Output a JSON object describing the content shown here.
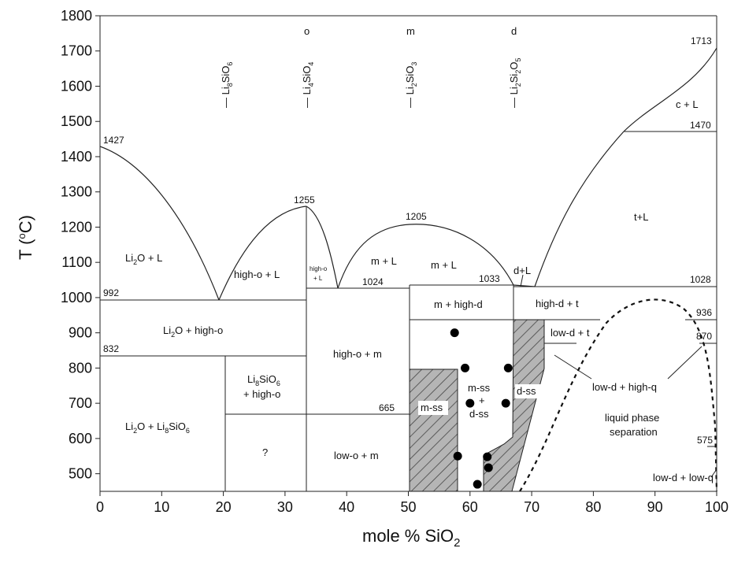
{
  "chart_data": {
    "type": "phase-diagram",
    "xlabel": "mole % SiO",
    "xlabel_sub": "2",
    "ylabel": "T (",
    "ylabel_deg": "o",
    "ylabel_end": "C)",
    "xlim": [
      0,
      100
    ],
    "ylim": [
      450,
      1800
    ],
    "x_ticks": [
      "0",
      "10",
      "20",
      "30",
      "40",
      "50",
      "60",
      "70",
      "80",
      "90",
      "100"
    ],
    "y_ticks": [
      "500",
      "600",
      "700",
      "800",
      "900",
      "1000",
      "1100",
      "1200",
      "1300",
      "1400",
      "1500",
      "1600",
      "1700",
      "1800"
    ],
    "compounds": [
      {
        "x": 20,
        "main": "Li",
        "s1": "8",
        "mid": "SiO",
        "s2": "6",
        "letter": ""
      },
      {
        "x": 33.3,
        "main": "Li",
        "s1": "4",
        "mid": "SiO",
        "s2": "4",
        "letter": "o"
      },
      {
        "x": 50,
        "main": "Li",
        "s1": "2",
        "mid": "SiO",
        "s2": "3",
        "letter": "m"
      },
      {
        "x": 66.7,
        "main": "Li",
        "s1": "2",
        "mid": "Si",
        "s2": "2",
        "tail": "O",
        "s3": "5",
        "letter": "d"
      }
    ],
    "temperatures": {
      "t1427": "1427",
      "t1255": "1255",
      "t1205": "1205",
      "t1713": "1713",
      "t1470": "1470",
      "t992": "992",
      "t1024": "1024",
      "t1033": "1033",
      "t1028": "1028",
      "t936": "936",
      "t870": "870",
      "t832": "832",
      "t665": "665",
      "t575": "575"
    },
    "regions": {
      "li2o_l_a": "Li",
      "li2o_l_b": "2",
      "li2o_l_c": "O + L",
      "high_o_l": "high-o + L",
      "high_o_l2_a": "high-o",
      "high_o_l2_b": "+ L",
      "m_l_1": "m + L",
      "m_l_2": "m + L",
      "d_l": "d+L",
      "c_l": "c + L",
      "t_l": "t+L",
      "li2o_ho_a": "Li",
      "li2o_ho_b": "2",
      "li2o_ho_c": "O + high-o",
      "m_hd": "m + high-d",
      "hd_t": "high-d + t",
      "ld_t": "low-d + t",
      "ho_m": "high-o + m",
      "li8_ho_a": "Li",
      "li8_ho_b": "8",
      "li8_ho_c": "SiO",
      "li8_ho_d": "6",
      "li8_ho_e": "+ high-o",
      "li2o_li8_a": "Li",
      "li2o_li8_b": "2",
      "li2o_li8_c": "O + Li",
      "li2o_li8_d": "8",
      "li2o_li8_e": "SiO",
      "li2o_li8_f": "6",
      "question": "?",
      "lo_m": "low-o + m",
      "m_ss": "m-ss",
      "mss_dss_1": "m-ss",
      "mss_dss_2": "+",
      "mss_dss_3": "d-ss",
      "d_ss": "d-ss",
      "ld_hq": "low-d + high-q",
      "lps_1": "liquid phase",
      "lps_2": "separation",
      "ld_lq": "low-d + low-q"
    },
    "experimental_points": [
      {
        "x": 57.5,
        "y": 900
      },
      {
        "x": 59.2,
        "y": 800
      },
      {
        "x": 66.2,
        "y": 800
      },
      {
        "x": 60.0,
        "y": 700
      },
      {
        "x": 65.8,
        "y": 700
      },
      {
        "x": 58.0,
        "y": 550
      },
      {
        "x": 62.8,
        "y": 548
      },
      {
        "x": 63.0,
        "y": 517
      },
      {
        "x": 61.2,
        "y": 470
      }
    ]
  }
}
